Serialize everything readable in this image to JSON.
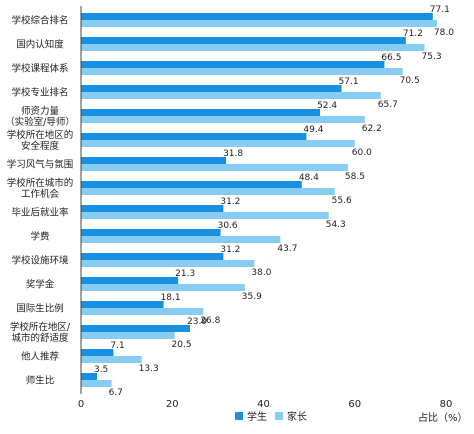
{
  "chart_data": {
    "type": "bar",
    "orientation": "horizontal",
    "categories": [
      [
        "学校综合排名"
      ],
      [
        "国内认知度"
      ],
      [
        "学校课程体系"
      ],
      [
        "学校专业排名"
      ],
      [
        "师资力量",
        "（实验室/导师）"
      ],
      [
        "学校所在地区的",
        "安全程度"
      ],
      [
        "学习风气与氛围"
      ],
      [
        "学校所在城市的",
        "工作机会"
      ],
      [
        "毕业后就业率"
      ],
      [
        "学费"
      ],
      [
        "学校设施环境"
      ],
      [
        "奖学金"
      ],
      [
        "国际生比例"
      ],
      [
        "学校所在地区/",
        "城市的舒适度"
      ],
      [
        "他人推荐"
      ],
      [
        "师生比"
      ]
    ],
    "series": [
      {
        "name": "学生",
        "color": "#1a8fe0",
        "values": [
          77.1,
          71.2,
          66.5,
          57.1,
          52.4,
          49.4,
          31.8,
          48.4,
          31.2,
          30.6,
          31.2,
          21.3,
          18.1,
          23.9,
          7.1,
          3.5
        ]
      },
      {
        "name": "家长",
        "color": "#86cdf1",
        "values": [
          78.0,
          75.3,
          70.5,
          65.7,
          62.2,
          60.0,
          58.5,
          55.6,
          54.3,
          43.7,
          38.0,
          35.9,
          26.8,
          20.5,
          13.3,
          6.7
        ]
      }
    ],
    "xlim": [
      0,
      80
    ],
    "xticks": [
      "0",
      "20",
      "40",
      "60",
      "80"
    ],
    "xlabel": "占比（%）",
    "legend_position": "bottom-center",
    "grid": false
  }
}
